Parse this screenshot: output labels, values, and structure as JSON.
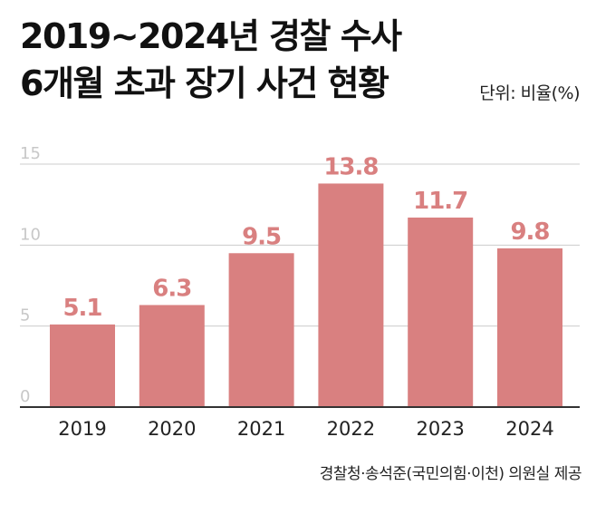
{
  "header": {
    "title_line1": "2019~2024년 경찰 수사",
    "title_line2": "6개월 초과 장기 사건 현황",
    "unit": "단위: 비율(%)"
  },
  "footer": {
    "source": "경찰청·송석준(국민의힘·이천) 의원실 제공"
  },
  "colors": {
    "bar": "#d98080",
    "value_label": "#d98080",
    "gridline": "#cccccc",
    "tick_label": "#c8c8c8",
    "baseline": "#333333",
    "category_label": "#222222"
  },
  "chart_data": {
    "type": "bar",
    "title": "2019~2024년 경찰 수사 6개월 초과 장기 사건 현황",
    "xlabel": "",
    "ylabel": "단위: 비율(%)",
    "categories": [
      "2019",
      "2020",
      "2021",
      "2022",
      "2023",
      "2024"
    ],
    "values": [
      5.1,
      6.3,
      9.5,
      13.8,
      11.7,
      9.8
    ],
    "value_labels": [
      "5.1",
      "6.3",
      "9.5",
      "13.8",
      "11.7",
      "9.8"
    ],
    "yticks": [
      "0",
      "5",
      "10",
      "15"
    ],
    "ylim": [
      0,
      15
    ],
    "grid": true,
    "legend": "none"
  }
}
